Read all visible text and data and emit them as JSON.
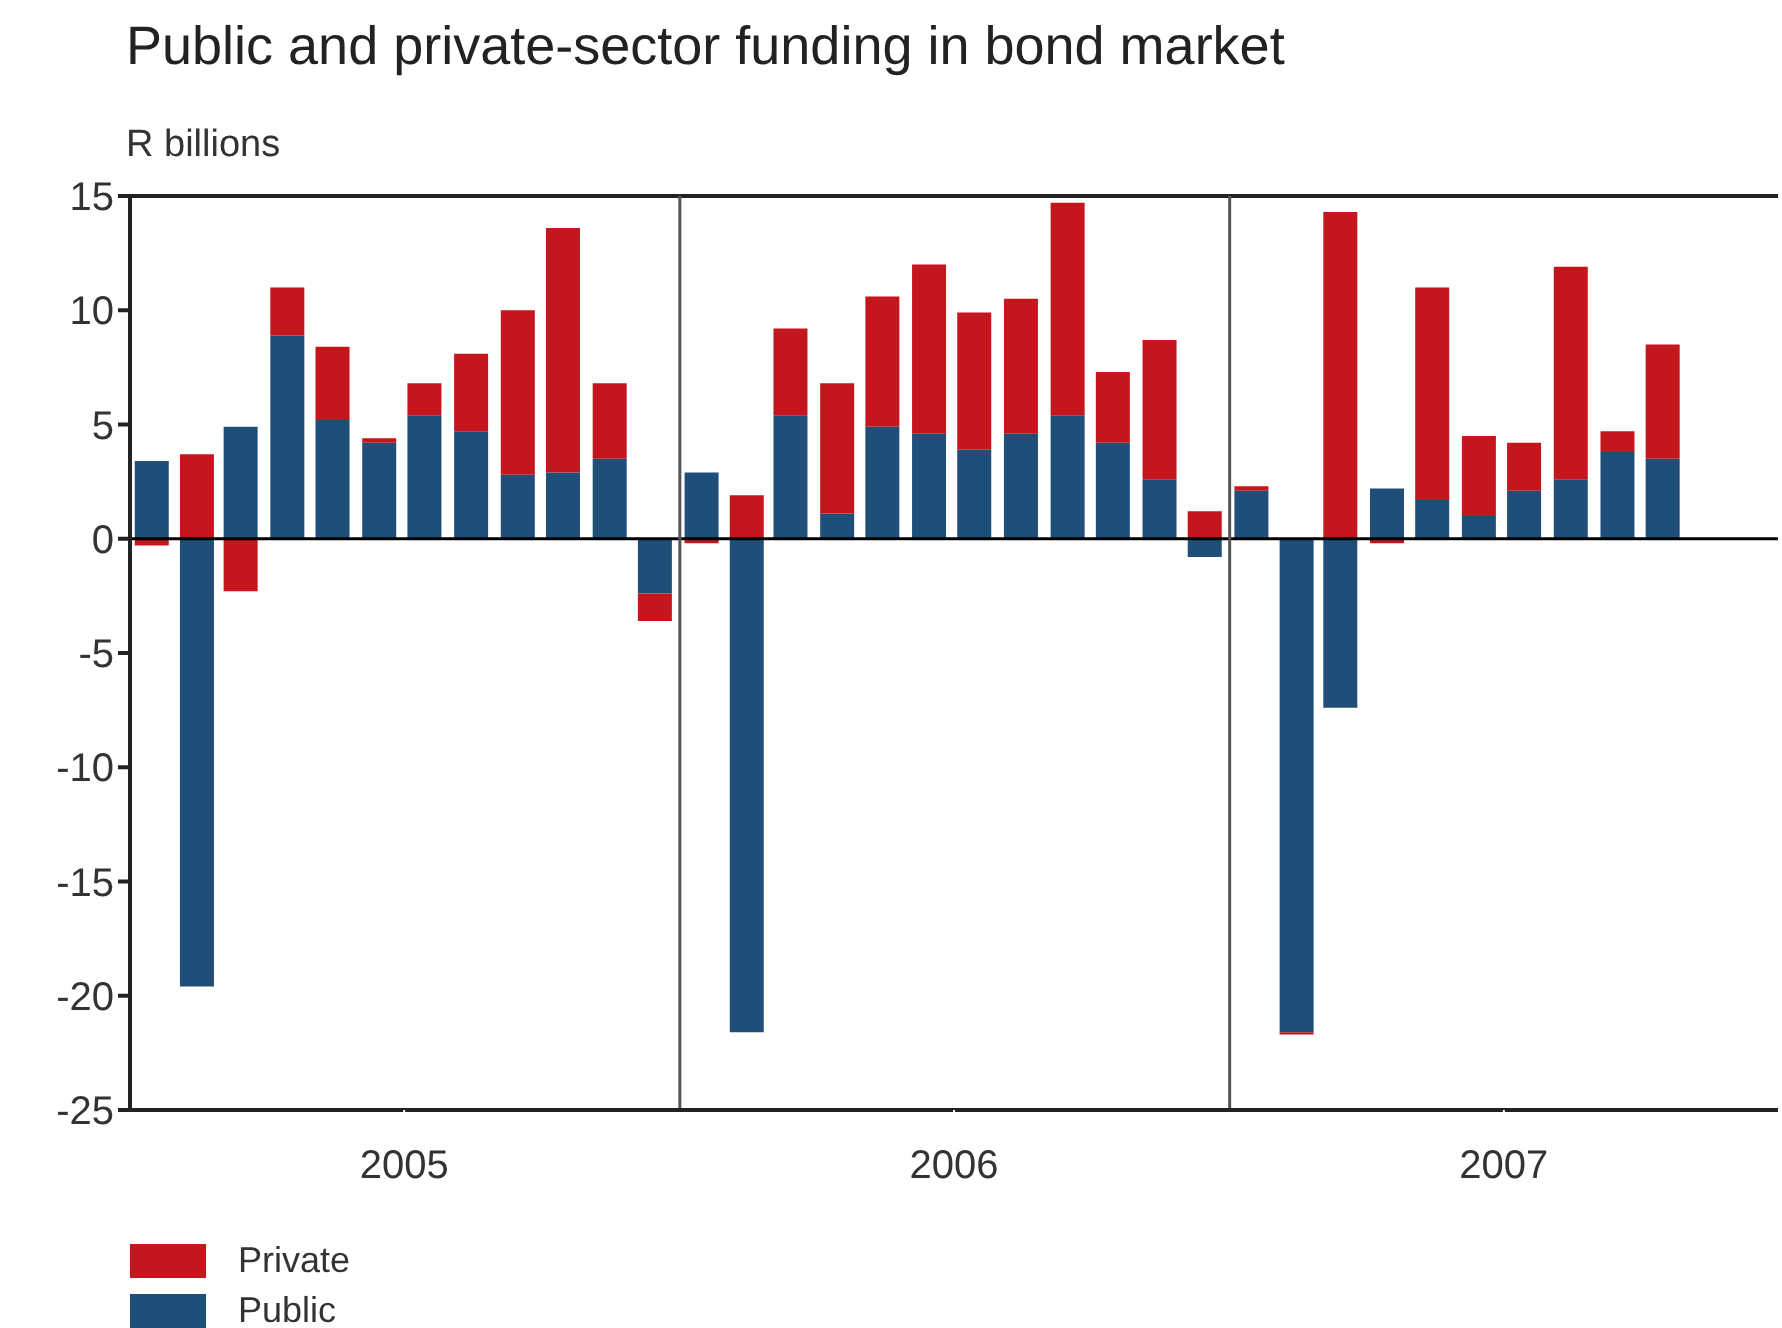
{
  "chart_data": {
    "type": "bar",
    "title": "Public and private-sector funding in bond market",
    "ylabel": "R billions",
    "stacked": true,
    "x": [
      "2005-01-16",
      "2005-02-15",
      "2005-03-16",
      "2005-04-16",
      "2005-05-16",
      "2005-06-16",
      "2005-07-16",
      "2005-08-16",
      "2005-09-16",
      "2005-10-16",
      "2005-11-16",
      "2005-12-16",
      "2006-01-16",
      "2006-02-15",
      "2006-03-16",
      "2006-04-16",
      "2006-05-16",
      "2006-06-16",
      "2006-07-16",
      "2006-08-16",
      "2006-09-16",
      "2006-10-16",
      "2006-11-16",
      "2006-12-16",
      "2007-01-16",
      "2007-02-15",
      "2007-03-16",
      "2007-04-16",
      "2007-05-16",
      "2007-06-16",
      "2007-07-16",
      "2007-08-16",
      "2007-09-16",
      "2007-10-16"
    ],
    "series": [
      {
        "name": "Public",
        "color": "#1f4e79",
        "values": [
          3.4,
          -19.6,
          4.9,
          8.9,
          5.2,
          4.2,
          5.4,
          4.7,
          2.8,
          2.9,
          3.5,
          -2.4,
          2.9,
          -21.6,
          5.4,
          1.1,
          4.9,
          4.6,
          3.9,
          4.6,
          5.4,
          4.2,
          2.6,
          -0.8,
          2.1,
          -21.6,
          -7.4,
          2.2,
          1.7,
          1.0,
          2.1,
          2.6,
          3.8,
          3.5
        ]
      },
      {
        "name": "Private",
        "color": "#c4161c",
        "values": [
          -0.3,
          3.7,
          -2.3,
          2.1,
          3.2,
          0.2,
          1.4,
          3.4,
          7.2,
          10.7,
          3.3,
          -1.2,
          -0.2,
          1.9,
          3.8,
          5.7,
          5.7,
          7.4,
          6.0,
          5.9,
          9.3,
          3.1,
          6.1,
          1.2,
          0.2,
          -0.1,
          14.3,
          -0.2,
          9.3,
          3.5,
          2.1,
          9.3,
          0.9,
          5.0
        ]
      }
    ],
    "xlim": [
      "2005-01-01",
      "2007-12-31"
    ],
    "xticks": [
      {
        "value": "2005-07-02",
        "label": "2005"
      },
      {
        "value": "2006-07-02",
        "label": "2006"
      },
      {
        "value": "2007-07-02",
        "label": "2007"
      }
    ],
    "ylim": [
      -25,
      15
    ],
    "yticks": [
      -25,
      -20,
      -15,
      -10,
      -5,
      0,
      5,
      10,
      15
    ],
    "ref_lines": [
      {
        "axis": "y",
        "value": 0,
        "color": "#000000"
      },
      {
        "axis": "x",
        "value": "2006-01-01",
        "color": "#555555"
      },
      {
        "axis": "x",
        "value": "2007-01-01",
        "color": "#555555"
      }
    ],
    "legend": "bottom left"
  }
}
